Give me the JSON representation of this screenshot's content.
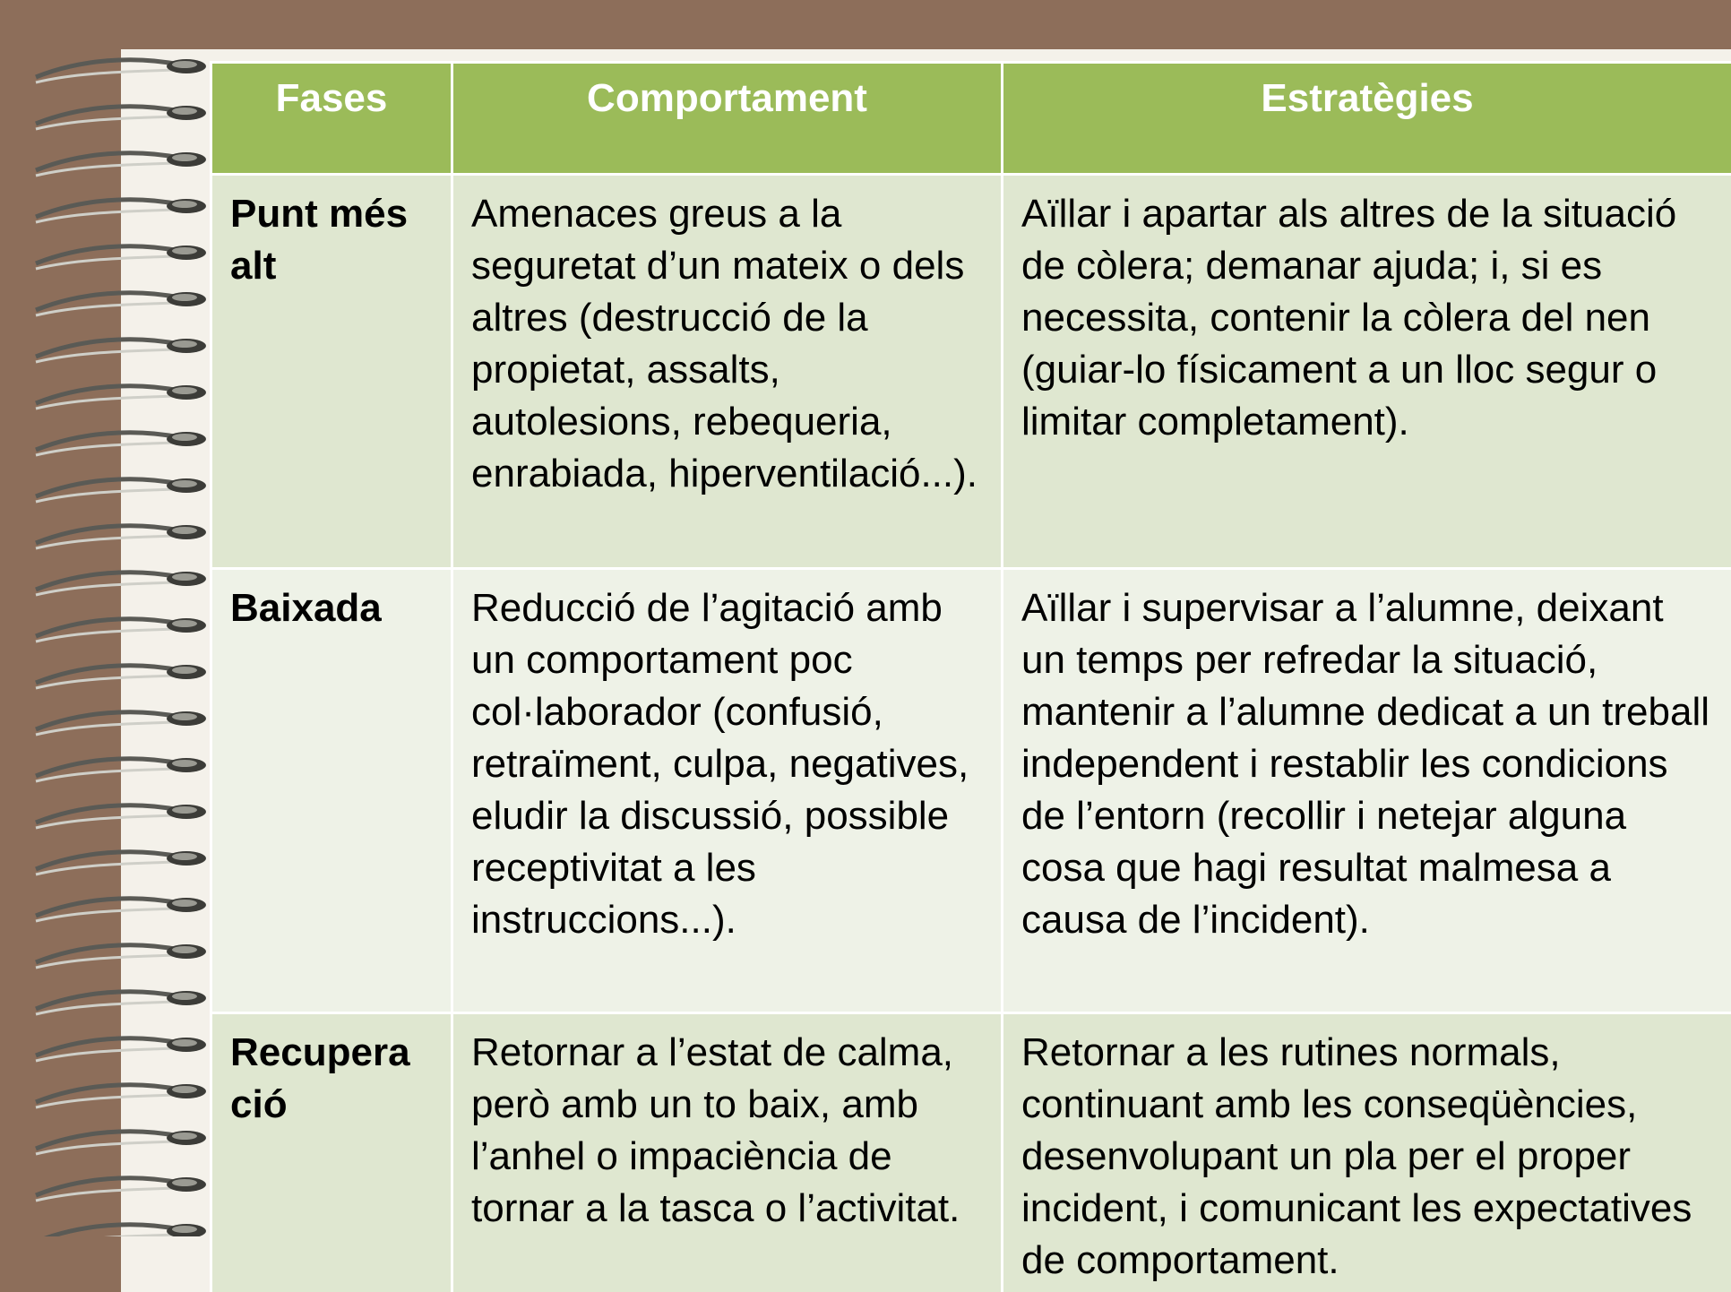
{
  "table": {
    "header": [
      "Fases",
      "Comportament",
      "Estratègies"
    ],
    "rows": [
      [
        "Punt més alt",
        "Amenaces greus a la seguretat d’un mateix o dels altres (destrucció de la propietat, assalts, autolesions, rebequeria, enrabiada, hiperventilació...).",
        "Aïllar i apartar als altres de la situació de còlera; demanar ajuda; i, si es necessita, contenir la còlera del nen (guiar-lo físicament a un lloc segur o limitar completament)."
      ],
      [
        "Baixada",
        "Reducció de l’agitació amb un comportament poc col·laborador (confusió, retraïment, culpa, negatives, eludir la discussió,  possible receptivitat a les instruccions...).",
        "Aïllar i supervisar a l’alumne, deixant un temps per refredar la situació, mantenir a l’alumne dedicat a un treball independent i restablir les condicions de l’entorn (recollir i netejar alguna cosa que hagi resultat malmesa a causa de l’incident)."
      ],
      [
        "Recupera ció",
        "Retornar a l’estat de calma, però  amb un to baix, amb l’anhel o impaciència de tornar a la tasca o l’activitat.",
        "Retornar a les rutines normals, continuant amb les conseqüències, desenvolupant un pla per el proper incident, i comunicant les expectatives de comportament."
      ]
    ]
  }
}
